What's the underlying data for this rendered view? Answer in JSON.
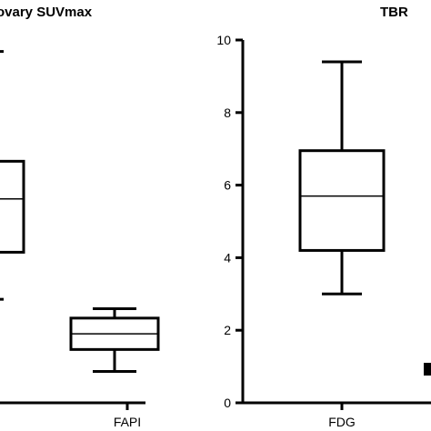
{
  "chart_data": [
    {
      "type": "box",
      "title": "ovary SUVmax",
      "categories": [
        "FAPI"
      ],
      "partial_left_box": {
        "whisker_high": 11.2,
        "q3": 7.7,
        "median": 6.5,
        "q1": 4.8,
        "whisker_low": 3.3
      },
      "boxes": [
        {
          "category": "FAPI",
          "whisker_low": 1.0,
          "q1": 1.7,
          "median": 2.2,
          "q3": 2.7,
          "whisker_high": 3.0
        }
      ],
      "ylim": [
        0,
        12
      ],
      "grid": false
    },
    {
      "type": "box",
      "title": "TBR",
      "categories": [
        "FDG"
      ],
      "boxes": [
        {
          "category": "FDG",
          "whisker_low": 3.0,
          "q1": 4.2,
          "median": 5.7,
          "q3": 6.95,
          "whisker_high": 9.4
        }
      ],
      "yticks": [
        "0",
        "2",
        "4",
        "6",
        "8",
        "10"
      ],
      "ylim": [
        0,
        10
      ],
      "grid": false
    }
  ]
}
